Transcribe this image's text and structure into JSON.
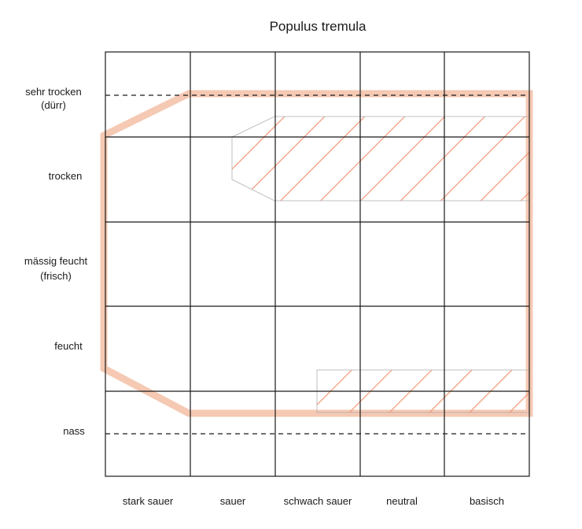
{
  "title": "Populus tremula",
  "y_labels": [
    [
      "sehr trocken",
      "(dürr)"
    ],
    [
      "trocken"
    ],
    [
      "mässig feucht",
      "(frisch)"
    ],
    [
      "feucht"
    ],
    [
      "nass"
    ]
  ],
  "x_labels": [
    "stark sauer",
    "sauer",
    "schwach sauer",
    "neutral",
    "basisch"
  ],
  "colors": {
    "grid": "#1a1a1a",
    "range_outline": "#f5c9b3",
    "hatch": "#f0906a",
    "hatch_border": "#b0b0b0"
  }
}
